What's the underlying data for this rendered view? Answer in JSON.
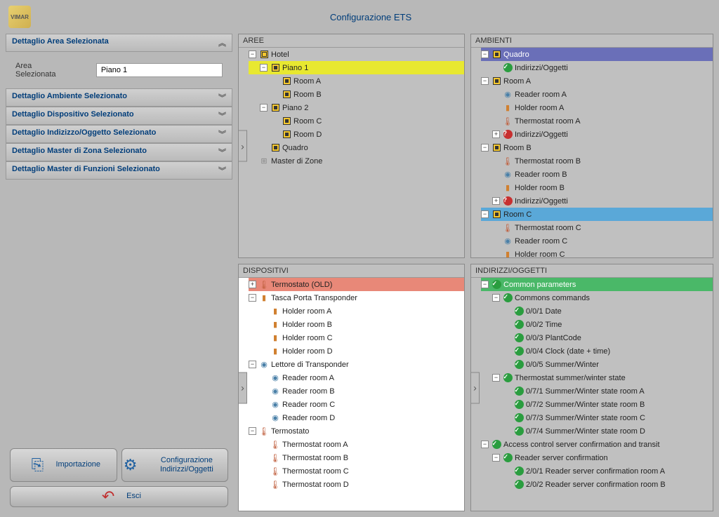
{
  "title": "Configurazione ETS",
  "logo_label": "VIMAR",
  "panels": {
    "aree": {
      "title": "AREE",
      "tree": [
        {
          "depth": 0,
          "exp": "-",
          "icon": "sq-outline",
          "label": "Hotel"
        },
        {
          "depth": 1,
          "exp": "-",
          "icon": "sq",
          "label": "Piano 1",
          "hl": "yellow"
        },
        {
          "depth": 2,
          "exp": "",
          "icon": "sq",
          "label": "Room A"
        },
        {
          "depth": 2,
          "exp": "",
          "icon": "sq",
          "label": "Room B"
        },
        {
          "depth": 1,
          "exp": "-",
          "icon": "sq",
          "label": "Piano 2"
        },
        {
          "depth": 2,
          "exp": "",
          "icon": "sq",
          "label": "Room C"
        },
        {
          "depth": 2,
          "exp": "",
          "icon": "sq",
          "label": "Room D"
        },
        {
          "depth": 1,
          "exp": "",
          "icon": "sq",
          "label": "Quadro"
        },
        {
          "depth": 0,
          "exp": "",
          "icon": "master",
          "label": "Master di Zone"
        }
      ]
    },
    "ambienti": {
      "title": "AMBIENTI",
      "tree": [
        {
          "depth": 0,
          "exp": "-",
          "icon": "sq",
          "label": "Quadro",
          "hl": "purple"
        },
        {
          "depth": 1,
          "exp": "",
          "icon": "check",
          "label": "Indirizzi/Oggetti"
        },
        {
          "depth": 0,
          "exp": "-",
          "icon": "sq",
          "label": "Room A"
        },
        {
          "depth": 1,
          "exp": "",
          "icon": "reader",
          "label": "Reader room A"
        },
        {
          "depth": 1,
          "exp": "",
          "icon": "holder",
          "label": "Holder room A"
        },
        {
          "depth": 1,
          "exp": "",
          "icon": "therm",
          "label": "Thermostat room A"
        },
        {
          "depth": 1,
          "exp": "+",
          "icon": "warn",
          "label": "Indirizzi/Oggetti"
        },
        {
          "depth": 0,
          "exp": "-",
          "icon": "sq",
          "label": "Room B"
        },
        {
          "depth": 1,
          "exp": "",
          "icon": "therm",
          "label": "Thermostat room B"
        },
        {
          "depth": 1,
          "exp": "",
          "icon": "reader",
          "label": "Reader room B"
        },
        {
          "depth": 1,
          "exp": "",
          "icon": "holder",
          "label": "Holder room B"
        },
        {
          "depth": 1,
          "exp": "+",
          "icon": "warn",
          "label": "Indirizzi/Oggetti"
        },
        {
          "depth": 0,
          "exp": "-",
          "icon": "sq",
          "label": "Room C",
          "hl": "blue",
          "handle": true
        },
        {
          "depth": 1,
          "exp": "",
          "icon": "therm",
          "label": "Thermostat room C"
        },
        {
          "depth": 1,
          "exp": "",
          "icon": "reader",
          "label": "Reader room C"
        },
        {
          "depth": 1,
          "exp": "",
          "icon": "holder",
          "label": "Holder room C"
        }
      ]
    },
    "dispositivi": {
      "title": "DISPOSITIVI",
      "white": true,
      "tree": [
        {
          "depth": 0,
          "exp": "+",
          "icon": "therm",
          "label": "Termostato (OLD)",
          "hl": "salmon"
        },
        {
          "depth": 0,
          "exp": "-",
          "icon": "holder",
          "label": "Tasca Porta Transponder"
        },
        {
          "depth": 1,
          "exp": "",
          "icon": "holder",
          "label": "Holder room A"
        },
        {
          "depth": 1,
          "exp": "",
          "icon": "holder",
          "label": "Holder room B"
        },
        {
          "depth": 1,
          "exp": "",
          "icon": "holder",
          "label": "Holder room C"
        },
        {
          "depth": 1,
          "exp": "",
          "icon": "holder",
          "label": "Holder room D"
        },
        {
          "depth": 0,
          "exp": "-",
          "icon": "reader",
          "label": "Lettore di Transponder"
        },
        {
          "depth": 1,
          "exp": "",
          "icon": "reader",
          "label": "Reader room A"
        },
        {
          "depth": 1,
          "exp": "",
          "icon": "reader",
          "label": "Reader room B"
        },
        {
          "depth": 1,
          "exp": "",
          "icon": "reader",
          "label": "Reader room C"
        },
        {
          "depth": 1,
          "exp": "",
          "icon": "reader",
          "label": "Reader room D"
        },
        {
          "depth": 0,
          "exp": "-",
          "icon": "therm",
          "label": "Termostato"
        },
        {
          "depth": 1,
          "exp": "",
          "icon": "therm",
          "label": "Thermostat room A"
        },
        {
          "depth": 1,
          "exp": "",
          "icon": "therm",
          "label": "Thermostat room B"
        },
        {
          "depth": 1,
          "exp": "",
          "icon": "therm",
          "label": "Thermostat room C"
        },
        {
          "depth": 1,
          "exp": "",
          "icon": "therm",
          "label": "Thermostat room D"
        }
      ]
    },
    "indirizzi": {
      "title": "INDIRIZZI/OGGETTI",
      "tree": [
        {
          "depth": 0,
          "exp": "-",
          "icon": "check",
          "label": "Common parameters",
          "hl": "green"
        },
        {
          "depth": 1,
          "exp": "-",
          "icon": "check",
          "label": "Commons commands"
        },
        {
          "depth": 2,
          "exp": "",
          "icon": "check",
          "label": "0/0/1 Date"
        },
        {
          "depth": 2,
          "exp": "",
          "icon": "check",
          "label": "0/0/2 Time"
        },
        {
          "depth": 2,
          "exp": "",
          "icon": "check",
          "label": "0/0/3 PlantCode"
        },
        {
          "depth": 2,
          "exp": "",
          "icon": "check",
          "label": "0/0/4 Clock (date + time)"
        },
        {
          "depth": 2,
          "exp": "",
          "icon": "check",
          "label": "0/0/5 Summer/Winter"
        },
        {
          "depth": 1,
          "exp": "-",
          "icon": "check",
          "label": "Thermostat summer/winter state"
        },
        {
          "depth": 2,
          "exp": "",
          "icon": "check",
          "label": "0/7/1 Summer/Winter state room A"
        },
        {
          "depth": 2,
          "exp": "",
          "icon": "check",
          "label": "0/7/2 Summer/Winter state room B"
        },
        {
          "depth": 2,
          "exp": "",
          "icon": "check",
          "label": "0/7/3 Summer/Winter state room C"
        },
        {
          "depth": 2,
          "exp": "",
          "icon": "check",
          "label": "0/7/4 Summer/Winter state room D"
        },
        {
          "depth": 0,
          "exp": "-",
          "icon": "check",
          "label": "Access control server confirmation and transit"
        },
        {
          "depth": 1,
          "exp": "-",
          "icon": "check",
          "label": "Reader server confirmation"
        },
        {
          "depth": 2,
          "exp": "",
          "icon": "check",
          "label": "2/0/1 Reader server confirmation room A"
        },
        {
          "depth": 2,
          "exp": "",
          "icon": "check",
          "label": "2/0/2 Reader server confirmation room B"
        }
      ]
    }
  },
  "details": {
    "sections": [
      {
        "title": "Dettaglio Area Selezionata",
        "expanded": true,
        "fields": [
          {
            "label": "Area Selezionata",
            "value": "Piano 1"
          }
        ]
      },
      {
        "title": "Dettaglio Ambiente Selezionato",
        "expanded": false
      },
      {
        "title": "Dettaglio Dispositivo Selezionato",
        "expanded": false
      },
      {
        "title": "Dettaglio Indizizzo/Oggetto Selezionato",
        "expanded": false
      },
      {
        "title": "Dettaglio Master di Zona Selezionato",
        "expanded": false
      },
      {
        "title": "Dettaglio Master di Funzioni Selezionato",
        "expanded": false
      }
    ]
  },
  "buttons": {
    "import": "Importazione",
    "config": "Configurazione Indirizzi/Oggetti",
    "exit": "Esci"
  },
  "icons": {
    "sq": "■",
    "sq-outline": "▣",
    "check": "✓",
    "warn": "?",
    "therm": "🌡",
    "holder": "▮",
    "reader": "◉",
    "master": "⊞"
  }
}
